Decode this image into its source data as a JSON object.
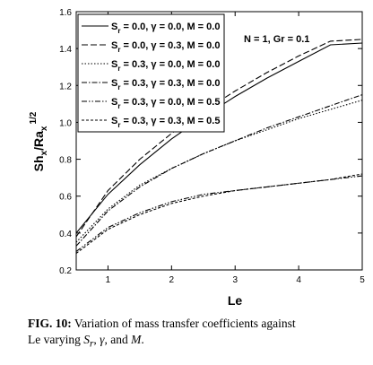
{
  "chart_data": {
    "type": "line",
    "xlabel": "Le",
    "ylabel_main": "Sh",
    "ylabel_sub_x": "x",
    "ylabel_slash": "/Ra",
    "ylabel_sup": "1/2",
    "xlim": [
      0.5,
      5
    ],
    "ylim": [
      0.2,
      1.6
    ],
    "xticks": [
      "1",
      "2",
      "3",
      "4",
      "5"
    ],
    "yticks": [
      "0.2",
      "0.4",
      "0.6",
      "0.8",
      "1.0",
      "1.2",
      "1.4",
      "1.6"
    ],
    "annotation": "N = 1, Gr = 0.1",
    "legend_position": "top-left",
    "x": [
      0.5,
      1.0,
      1.5,
      2.0,
      2.5,
      3.0,
      3.5,
      4.0,
      4.5,
      5.0
    ],
    "series": [
      {
        "legend": {
          "p1": "S",
          "sub": "r",
          "p2": " = 0.0, γ = 0.0, M = 0.0"
        },
        "dash": "solid",
        "values": [
          0.4,
          0.61,
          0.77,
          0.91,
          1.03,
          1.14,
          1.24,
          1.33,
          1.42,
          1.43
        ]
      },
      {
        "legend": {
          "p1": "S",
          "sub": "r",
          "p2": " = 0.0, γ = 0.3, M = 0.0"
        },
        "dash": "dashed",
        "values": [
          0.38,
          0.63,
          0.8,
          0.94,
          1.06,
          1.17,
          1.27,
          1.36,
          1.44,
          1.45
        ]
      },
      {
        "legend": {
          "p1": "S",
          "sub": "r",
          "p2": " = 0.3, γ = 0.0, M = 0.0"
        },
        "dash": "dotted",
        "values": [
          0.35,
          0.53,
          0.66,
          0.75,
          0.83,
          0.9,
          0.96,
          1.02,
          1.07,
          1.12
        ]
      },
      {
        "legend": {
          "p1": "S",
          "sub": "r",
          "p2": " = 0.3, γ = 0.3, M = 0.0"
        },
        "dash": "dashdot",
        "values": [
          0.33,
          0.52,
          0.65,
          0.75,
          0.83,
          0.9,
          0.97,
          1.03,
          1.09,
          1.15
        ]
      },
      {
        "legend": {
          "p1": "S",
          "sub": "r",
          "p2": " = 0.3, γ = 0.0, M = 0.5"
        },
        "dash": "dashdotdot",
        "values": [
          0.3,
          0.43,
          0.51,
          0.57,
          0.61,
          0.63,
          0.65,
          0.67,
          0.69,
          0.71
        ]
      },
      {
        "legend": {
          "p1": "S",
          "sub": "r",
          "p2": " = 0.3, γ = 0.3, M = 0.5"
        },
        "dash": "shortdash",
        "values": [
          0.29,
          0.42,
          0.5,
          0.56,
          0.6,
          0.63,
          0.65,
          0.67,
          0.69,
          0.72
        ]
      }
    ]
  },
  "caption": {
    "label": "FIG. 10:",
    "text1": " Variation of mass transfer coefficients against",
    "text2": "Le varying ",
    "m1": "S",
    "m1_sub": "r",
    "sep1": ", ",
    "m2": "γ",
    "sep2": ", and ",
    "m3": "M",
    "end": "."
  }
}
